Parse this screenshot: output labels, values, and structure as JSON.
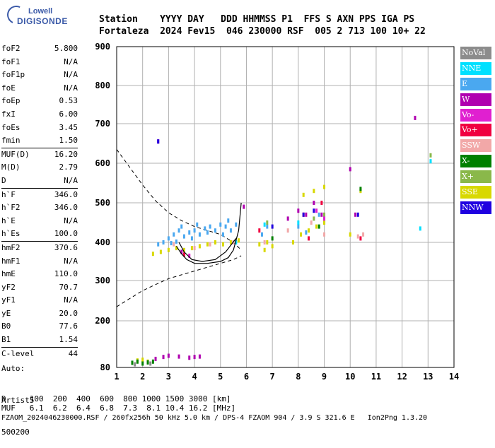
{
  "logo": {
    "line1": "Lowell",
    "line2": "DIGISONDE"
  },
  "header": {
    "row1": "Station    YYYY DAY   DDD HHMMSS P1  FFS S AXN PPS IGA PS",
    "row2": "Fortaleza  2024 Fev15  046 230000 RSF  005 2 713 100 10+ 22"
  },
  "params": [
    {
      "k": "foF2",
      "v": "5.800"
    },
    {
      "k": "foF1",
      "v": "N/A"
    },
    {
      "k": "foF1p",
      "v": "N/A"
    },
    {
      "k": "foE",
      "v": "N/A"
    },
    {
      "k": "foEp",
      "v": "0.53"
    },
    {
      "k": "fxI",
      "v": "6.00"
    },
    {
      "k": "foEs",
      "v": "3.45"
    },
    {
      "k": "fmin",
      "v": "1.50"
    },
    {
      "k": "MUF(D)",
      "v": "16.20",
      "sep": true
    },
    {
      "k": "M(D)",
      "v": "2.79"
    },
    {
      "k": "D",
      "v": "N/A"
    },
    {
      "k": "h`F",
      "v": "346.0",
      "sep": true
    },
    {
      "k": "h`F2",
      "v": "346.0"
    },
    {
      "k": "h`E",
      "v": "N/A"
    },
    {
      "k": "h`Es",
      "v": "100.0"
    },
    {
      "k": "hmF2",
      "v": "370.6",
      "sep": true
    },
    {
      "k": "hmF1",
      "v": "N/A"
    },
    {
      "k": "hmE",
      "v": "110.0"
    },
    {
      "k": "yF2",
      "v": "70.7"
    },
    {
      "k": "yF1",
      "v": "N/A"
    },
    {
      "k": "yE",
      "v": "20.0"
    },
    {
      "k": "B0",
      "v": "77.6"
    },
    {
      "k": "B1",
      "v": "1.54"
    },
    {
      "k": "C-level",
      "v": "44",
      "sep": true
    }
  ],
  "auto": {
    "line1": "Auto:",
    "line2": "Artist5",
    "line3": "500200"
  },
  "legend": [
    {
      "label": "NoVal",
      "color": "#8c8c8c"
    },
    {
      "label": "NNE",
      "color": "#00e0ff"
    },
    {
      "label": "E",
      "color": "#4aa8f0"
    },
    {
      "label": "W",
      "color": "#b000b0"
    },
    {
      "label": "Vo-",
      "color": "#e020d0"
    },
    {
      "label": "Vo+",
      "color": "#f00040"
    },
    {
      "label": "SSW",
      "color": "#f2a8a8"
    },
    {
      "label": "X-",
      "color": "#008000"
    },
    {
      "label": "X+",
      "color": "#8ab84a"
    },
    {
      "label": "SSE",
      "color": "#d8d800"
    },
    {
      "label": "NNW",
      "color": "#2000e0"
    }
  ],
  "footer": {
    "dline": "D     100  200  400  600  800 1000 1500 3000 [km]",
    "mufline": "MUF   6.1  6.2  6.4  6.8  7.3  8.1 10.4 16.2 [MHz]",
    "fileline": "FZAOM_2024046230000.RSF / 260fx256h 50 kHz 5.0 km / DPS-4 FZAOM 904 / 3.9 S 321.6 E   Ion2Png 1.3.20"
  },
  "chart_data": {
    "type": "scatter",
    "xlim": [
      1,
      14
    ],
    "ylim": [
      80,
      900
    ],
    "x_ticks": [
      1,
      2,
      3,
      4,
      5,
      6,
      7,
      8,
      9,
      10,
      11,
      12,
      13,
      14
    ],
    "y_ticks": [
      80,
      200,
      300,
      400,
      500,
      600,
      700,
      800,
      900
    ],
    "x_tick_labels": [
      "1",
      "2",
      "3",
      "4",
      "5",
      "6",
      "7",
      "8",
      "9",
      "10",
      "11",
      "12",
      "13",
      "14"
    ],
    "y_tick_labels": [
      "80",
      "200",
      "300",
      "400",
      "500",
      "600",
      "700",
      "800",
      "900"
    ],
    "grid": true,
    "legend_position": "right",
    "series": [
      {
        "name": "E",
        "color": "#4aa8f0",
        "points": [
          [
            2.8,
            400
          ],
          [
            3.0,
            410
          ],
          [
            3.2,
            420
          ],
          [
            3.4,
            430
          ],
          [
            3.6,
            415
          ],
          [
            3.8,
            425
          ],
          [
            4.0,
            430
          ],
          [
            4.2,
            420
          ],
          [
            4.4,
            435
          ],
          [
            4.6,
            440
          ],
          [
            4.8,
            430
          ],
          [
            5.0,
            445
          ],
          [
            5.2,
            440
          ],
          [
            5.4,
            430
          ],
          [
            5.6,
            445
          ],
          [
            2.6,
            395
          ],
          [
            3.1,
            398
          ],
          [
            3.5,
            440
          ],
          [
            4.1,
            445
          ],
          [
            4.5,
            425
          ],
          [
            5.1,
            420
          ],
          [
            5.3,
            455
          ],
          [
            6.6,
            420
          ],
          [
            6.8,
            440
          ],
          [
            8.0,
            440
          ],
          [
            8.3,
            425
          ],
          [
            8.8,
            470
          ],
          [
            9.0,
            450
          ],
          [
            3.3,
            402
          ],
          [
            3.9,
            410
          ]
        ]
      },
      {
        "name": "SSE",
        "color": "#d8d800",
        "points": [
          [
            2.4,
            370
          ],
          [
            2.7,
            375
          ],
          [
            3.0,
            380
          ],
          [
            3.3,
            385
          ],
          [
            3.6,
            380
          ],
          [
            3.9,
            385
          ],
          [
            4.2,
            390
          ],
          [
            4.5,
            395
          ],
          [
            4.8,
            400
          ],
          [
            5.1,
            395
          ],
          [
            5.4,
            400
          ],
          [
            5.7,
            405
          ],
          [
            6.5,
            395
          ],
          [
            6.8,
            400
          ],
          [
            7.0,
            390
          ],
          [
            7.8,
            400
          ],
          [
            8.1,
            420
          ],
          [
            8.4,
            430
          ],
          [
            8.7,
            440
          ],
          [
            9.0,
            450
          ],
          [
            8.2,
            520
          ],
          [
            8.6,
            530
          ],
          [
            9.0,
            540
          ],
          [
            10.4,
            530
          ],
          [
            10.0,
            420
          ],
          [
            6.7,
            380
          ],
          [
            2.0,
            100
          ],
          [
            2.2,
            95
          ],
          [
            1.8,
            98
          ]
        ]
      },
      {
        "name": "W",
        "color": "#b000b0",
        "points": [
          [
            2.6,
            655
          ],
          [
            3.5,
            375
          ],
          [
            5.9,
            490
          ],
          [
            7.6,
            460
          ],
          [
            8.0,
            480
          ],
          [
            8.3,
            470
          ],
          [
            8.6,
            500
          ],
          [
            8.9,
            470
          ],
          [
            10.0,
            585
          ],
          [
            10.2,
            470
          ],
          [
            12.5,
            715
          ],
          [
            2.8,
            107
          ],
          [
            3.0,
            110
          ],
          [
            3.4,
            108
          ],
          [
            3.8,
            105
          ],
          [
            4.0,
            107
          ],
          [
            4.2,
            108
          ],
          [
            2.5,
            102
          ]
        ]
      },
      {
        "name": "SSW",
        "color": "#f2a8a8",
        "points": [
          [
            3.2,
            395
          ],
          [
            4.0,
            385
          ],
          [
            4.6,
            395
          ],
          [
            5.5,
            400
          ],
          [
            6.7,
            400
          ],
          [
            7.6,
            430
          ],
          [
            8.5,
            450
          ],
          [
            9.0,
            420
          ],
          [
            10.3,
            415
          ],
          [
            10.5,
            420
          ]
        ]
      },
      {
        "name": "X-",
        "color": "#008000",
        "points": [
          [
            1.6,
            92
          ],
          [
            1.8,
            95
          ],
          [
            2.0,
            90
          ],
          [
            2.2,
            93
          ],
          [
            2.4,
            95
          ],
          [
            7.0,
            410
          ],
          [
            8.8,
            440
          ],
          [
            10.4,
            535
          ]
        ]
      },
      {
        "name": "X+",
        "color": "#8ab84a",
        "points": [
          [
            6.8,
            450
          ],
          [
            8.6,
            460
          ],
          [
            13.1,
            620
          ],
          [
            9.0,
            470
          ]
        ]
      },
      {
        "name": "Vo+",
        "color": "#f00040",
        "points": [
          [
            3.6,
            368
          ],
          [
            6.5,
            430
          ],
          [
            8.2,
            470
          ],
          [
            8.4,
            410
          ],
          [
            8.9,
            500
          ],
          [
            10.4,
            410
          ]
        ]
      },
      {
        "name": "Vo-",
        "color": "#e020d0",
        "points": [
          [
            3.8,
            365
          ],
          [
            8.7,
            480
          ],
          [
            9.0,
            460
          ]
        ]
      },
      {
        "name": "NNW",
        "color": "#2000e0",
        "points": [
          [
            7.0,
            440
          ],
          [
            8.2,
            470
          ],
          [
            8.6,
            480
          ],
          [
            10.3,
            470
          ],
          [
            2.6,
            655
          ]
        ]
      },
      {
        "name": "NNE",
        "color": "#00e0ff",
        "points": [
          [
            5.6,
            400
          ],
          [
            6.7,
            445
          ],
          [
            8.0,
            450
          ],
          [
            12.7,
            435
          ],
          [
            13.1,
            605
          ]
        ]
      },
      {
        "name": "NoVal",
        "color": "#8c8c8c",
        "points": [
          [
            1.7,
            88
          ],
          [
            2.3,
            90
          ]
        ]
      }
    ],
    "profile_curve": [
      [
        3.3,
        390
      ],
      [
        3.5,
        370
      ],
      [
        3.7,
        355
      ],
      [
        4.0,
        345
      ],
      [
        4.5,
        345
      ],
      [
        5.0,
        350
      ],
      [
        5.3,
        360
      ],
      [
        5.5,
        380
      ],
      [
        5.7,
        430
      ],
      [
        5.8,
        500
      ]
    ],
    "trace_curve": [
      [
        3.4,
        400
      ],
      [
        3.6,
        375
      ],
      [
        3.9,
        355
      ],
      [
        4.3,
        350
      ],
      [
        4.8,
        355
      ],
      [
        5.2,
        375
      ],
      [
        5.6,
        410
      ]
    ],
    "dashed_upper": [
      [
        1.0,
        635
      ],
      [
        1.5,
        590
      ],
      [
        2.0,
        545
      ],
      [
        2.5,
        505
      ],
      [
        3.0,
        475
      ],
      [
        3.5,
        455
      ],
      [
        4.0,
        440
      ],
      [
        4.5,
        430
      ],
      [
        5.0,
        420
      ],
      [
        5.5,
        400
      ],
      [
        5.8,
        380
      ]
    ],
    "dashed_lower": [
      [
        1.0,
        235
      ],
      [
        1.5,
        255
      ],
      [
        2.0,
        275
      ],
      [
        2.5,
        290
      ],
      [
        3.0,
        305
      ],
      [
        3.5,
        315
      ],
      [
        4.0,
        325
      ],
      [
        4.5,
        335
      ],
      [
        5.0,
        345
      ],
      [
        5.5,
        355
      ],
      [
        5.8,
        365
      ]
    ]
  }
}
